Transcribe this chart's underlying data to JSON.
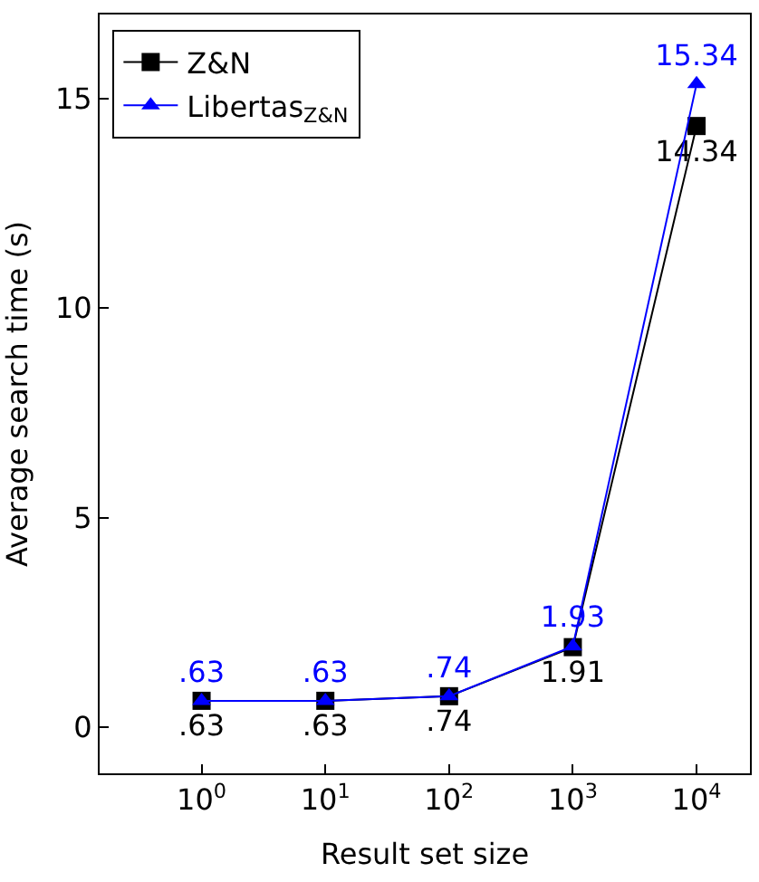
{
  "chart_data": {
    "type": "line",
    "xlabel": "Result set size",
    "ylabel": "Average search time (s)",
    "x": [
      1,
      10,
      100,
      1000,
      10000
    ],
    "series": [
      {
        "name": "Z&N",
        "color": "#000000",
        "marker": "square",
        "values": [
          0.63,
          0.63,
          0.74,
          1.91,
          14.34
        ],
        "value_labels": [
          ".63",
          ".63",
          ".74",
          "1.91",
          "14.34"
        ]
      },
      {
        "name": "Libertas$_{Z&N}$",
        "color": "#0000ff",
        "marker": "triangle",
        "values": [
          0.63,
          0.63,
          0.74,
          1.93,
          15.34
        ],
        "value_labels": [
          ".63",
          ".63",
          ".74",
          "1.93",
          "15.34"
        ]
      }
    ],
    "log": "x",
    "xlim": [
      0.15,
      27000
    ],
    "ylim": [
      -1.1,
      17
    ],
    "xticks": [
      {
        "value": 1,
        "label": "10$^{0}$"
      },
      {
        "value": 10,
        "label": "10$^{1}$"
      },
      {
        "value": 100,
        "label": "10$^{2}$"
      },
      {
        "value": 1000,
        "label": "10$^{3}$"
      },
      {
        "value": 10000,
        "label": "10$^{4}$"
      }
    ],
    "yticks": [
      0,
      5,
      10,
      15
    ],
    "legend": "top left"
  }
}
